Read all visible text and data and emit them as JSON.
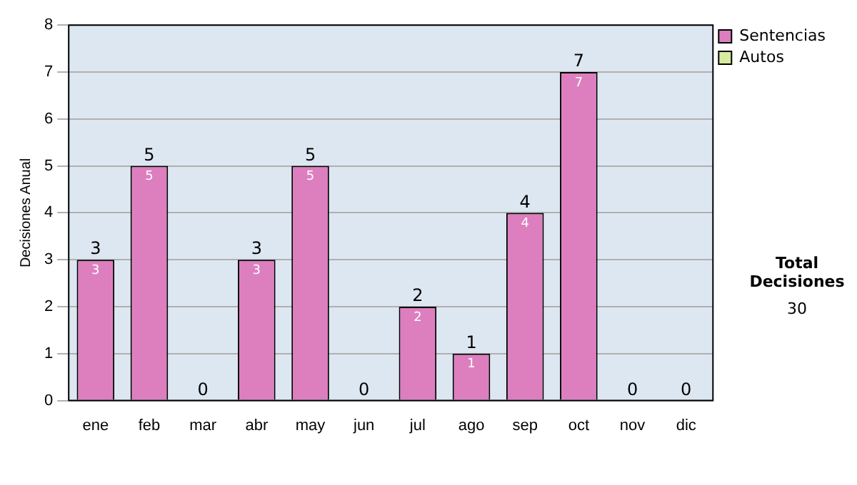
{
  "chart_data": {
    "type": "bar",
    "stacked": true,
    "ylabel": "Decisiones Anual",
    "categories": [
      "ene",
      "feb",
      "mar",
      "abr",
      "may",
      "jun",
      "jul",
      "ago",
      "sep",
      "oct",
      "nov",
      "dic"
    ],
    "series": [
      {
        "name": "Sentencias",
        "color": "#dd7fbf",
        "values": [
          3,
          5,
          0,
          3,
          5,
          0,
          2,
          1,
          4,
          7,
          0,
          0
        ],
        "value_labels": [
          "3",
          "5",
          null,
          "3",
          "5",
          null,
          "2",
          "1",
          "4",
          "7",
          null,
          null
        ]
      },
      {
        "name": "Autos",
        "color": "#d6eba0",
        "values": [
          0,
          0,
          0,
          0,
          0,
          0,
          0,
          0,
          0,
          0,
          0,
          0
        ]
      }
    ],
    "totals": [
      "3",
      "5",
      "0",
      "3",
      "5",
      "0",
      "2",
      "1",
      "4",
      "7",
      "0",
      "0"
    ],
    "ylim": [
      0,
      8
    ],
    "yticks": [
      0,
      1,
      2,
      3,
      4,
      5,
      6,
      7,
      8
    ],
    "grid": "y",
    "legend": "right",
    "annotations": [
      "Total Decisiones",
      "30"
    ]
  }
}
